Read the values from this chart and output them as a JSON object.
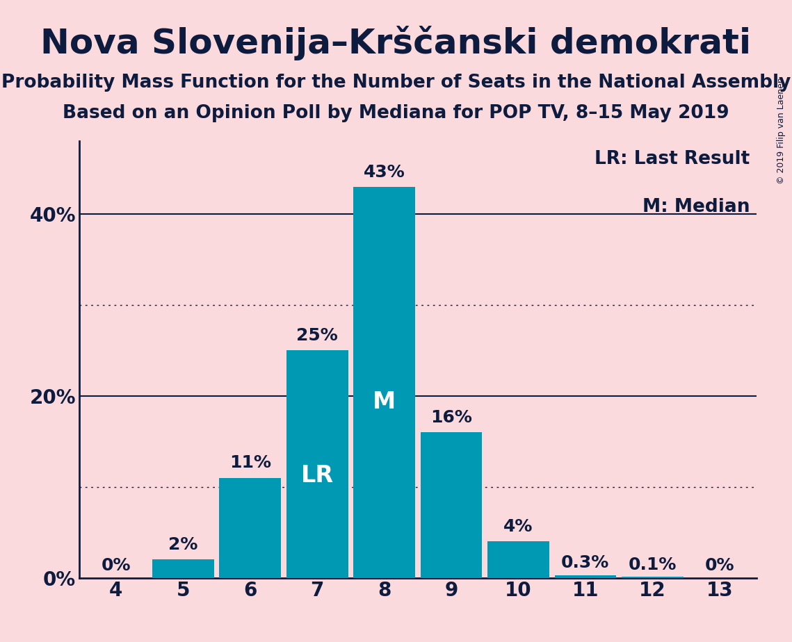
{
  "title": "Nova Slovenija–Krščanski demokrati",
  "subtitle1": "Probability Mass Function for the Number of Seats in the National Assembly",
  "subtitle2": "Based on an Opinion Poll by Mediana for POP TV, 8–15 May 2019",
  "copyright": "© 2019 Filip van Laenen",
  "seats": [
    4,
    5,
    6,
    7,
    8,
    9,
    10,
    11,
    12,
    13
  ],
  "values": [
    0.0,
    2.0,
    11.0,
    25.0,
    43.0,
    16.0,
    4.0,
    0.3,
    0.1,
    0.0
  ],
  "labels": [
    "0%",
    "2%",
    "11%",
    "25%",
    "43%",
    "16%",
    "4%",
    "0.3%",
    "0.1%",
    "0%"
  ],
  "bar_color": "#0099b4",
  "background_color": "#fadadd",
  "text_color": "#0d1b3e",
  "title_fontsize": 36,
  "subtitle_fontsize": 19,
  "label_fontsize": 18,
  "tick_fontsize": 20,
  "legend_fontsize": 19,
  "copyright_fontsize": 9,
  "ytick_positions": [
    0,
    20,
    40
  ],
  "ytick_labels": [
    "0%",
    "20%",
    "40%"
  ],
  "solid_gridlines": [
    20,
    40
  ],
  "dotted_gridlines": [
    10,
    30
  ],
  "lr_seat": 7,
  "median_seat": 8,
  "lr_label_fontsize": 24,
  "m_label_fontsize": 24,
  "ylim": [
    0,
    48
  ],
  "bar_width": 0.92
}
